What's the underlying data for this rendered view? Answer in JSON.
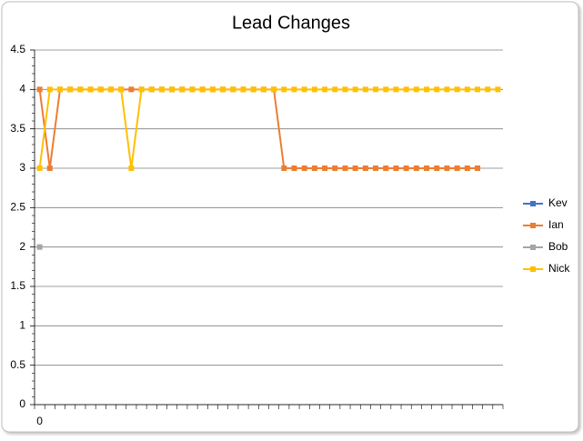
{
  "chart_data": {
    "type": "line",
    "title": "Lead Changes",
    "categories": [
      "0",
      null,
      null,
      null,
      null,
      null,
      null,
      null,
      null,
      null,
      null,
      null,
      null,
      null,
      null,
      null,
      null,
      null,
      null,
      null,
      null,
      null,
      null,
      null,
      null,
      null,
      null,
      null,
      null,
      null,
      null,
      null,
      null,
      null,
      null,
      null,
      null,
      null,
      null,
      null,
      null,
      null,
      null,
      null,
      null,
      null
    ],
    "series": [
      {
        "name": "Kev",
        "color": "#4472c4",
        "values": [
          null,
          null,
          null,
          null,
          null,
          null,
          null,
          null,
          null,
          null,
          null,
          null,
          null,
          null,
          null,
          null,
          null,
          null,
          null,
          null,
          null,
          null,
          null,
          null,
          null,
          null,
          null,
          null,
          null,
          null,
          null,
          null,
          null,
          null,
          null,
          null,
          null,
          null,
          null,
          null,
          null,
          null,
          null,
          null,
          null,
          null
        ]
      },
      {
        "name": "Ian",
        "color": "#ed7d31",
        "values": [
          4,
          3,
          4,
          4,
          4,
          4,
          4,
          4,
          4,
          4,
          4,
          4,
          4,
          4,
          4,
          4,
          4,
          4,
          4,
          4,
          4,
          4,
          4,
          4,
          3,
          3,
          3,
          3,
          3,
          3,
          3,
          3,
          3,
          3,
          3,
          3,
          3,
          3,
          3,
          3,
          3,
          3,
          3,
          3,
          null,
          null
        ]
      },
      {
        "name": "Bob",
        "color": "#a5a5a5",
        "values": [
          2,
          null,
          null,
          null,
          null,
          null,
          null,
          null,
          null,
          null,
          null,
          null,
          null,
          null,
          null,
          null,
          null,
          null,
          null,
          null,
          null,
          null,
          null,
          null,
          null,
          null,
          null,
          null,
          null,
          null,
          null,
          null,
          null,
          null,
          null,
          null,
          null,
          null,
          null,
          null,
          null,
          null,
          null,
          null,
          null,
          null
        ]
      },
      {
        "name": "Nick",
        "color": "#ffc000",
        "values": [
          3,
          4,
          4,
          4,
          4,
          4,
          4,
          4,
          4,
          3,
          4,
          4,
          4,
          4,
          4,
          4,
          4,
          4,
          4,
          4,
          4,
          4,
          4,
          4,
          4,
          4,
          4,
          4,
          4,
          4,
          4,
          4,
          4,
          4,
          4,
          4,
          4,
          4,
          4,
          4,
          4,
          4,
          4,
          4,
          4,
          4
        ]
      }
    ],
    "ylim": [
      0,
      4.5
    ],
    "yticks": [
      0,
      0.5,
      1,
      1.5,
      2,
      2.5,
      3,
      3.5,
      4,
      4.5
    ],
    "grid": true,
    "legend": "right"
  }
}
